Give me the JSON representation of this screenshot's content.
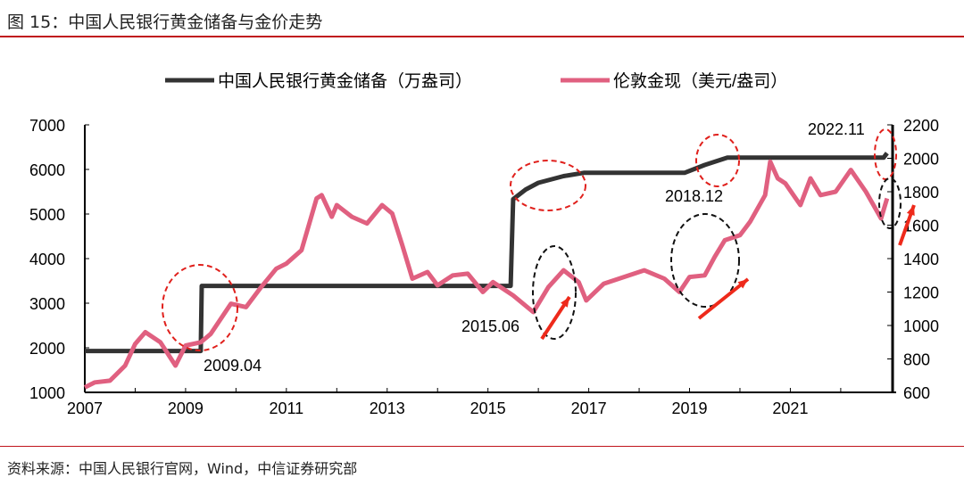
{
  "header": {
    "title": "图 15：中国人民银行黄金储备与金价走势"
  },
  "footer": {
    "source": "资料来源：中国人民银行官网，Wind，中信证券研究部"
  },
  "chart_data": {
    "type": "line",
    "title": "图 15：中国人民银行黄金储备与金价走势",
    "x_ticks": [
      "2007",
      "2009",
      "2011",
      "2013",
      "2015",
      "2017",
      "2019",
      "2021"
    ],
    "xlim": [
      2007,
      2023.1
    ],
    "y_left": {
      "ylim": [
        1000,
        7000
      ],
      "ticks": [
        "1000",
        "2000",
        "3000",
        "4000",
        "5000",
        "6000",
        "7000"
      ]
    },
    "y_right": {
      "ylim": [
        600,
        2200
      ],
      "ticks": [
        "600",
        "800",
        "1000",
        "1200",
        "1400",
        "1600",
        "1800",
        "2000",
        "2200"
      ]
    },
    "legend_position": "top",
    "series": [
      {
        "name": "中国人民银行黄金储备（万盎司）",
        "axis": "left",
        "color": "#333333",
        "x": [
          2007.0,
          2009.3,
          2009.32,
          2015.45,
          2015.5,
          2015.75,
          2016.0,
          2016.5,
          2016.9,
          2018.9,
          2019.3,
          2019.75,
          2022.85,
          2022.92
        ],
        "y": [
          1929,
          1929,
          3389,
          3389,
          5332,
          5550,
          5700,
          5850,
          5924,
          5924,
          6100,
          6264,
          6264,
          6367
        ]
      },
      {
        "name": "伦敦金现（美元/盎司）",
        "axis": "right",
        "color": "#e06080",
        "x": [
          2007.0,
          2007.2,
          2007.5,
          2007.8,
          2008.0,
          2008.2,
          2008.5,
          2008.8,
          2009.0,
          2009.3,
          2009.5,
          2009.9,
          2010.2,
          2010.5,
          2010.8,
          2011.0,
          2011.3,
          2011.6,
          2011.7,
          2011.9,
          2012.0,
          2012.3,
          2012.6,
          2012.9,
          2013.1,
          2013.3,
          2013.5,
          2013.8,
          2014.0,
          2014.3,
          2014.6,
          2014.9,
          2015.1,
          2015.5,
          2015.9,
          2016.2,
          2016.5,
          2016.8,
          2016.95,
          2017.3,
          2017.7,
          2018.1,
          2018.5,
          2018.8,
          2019.0,
          2019.3,
          2019.5,
          2019.7,
          2020.0,
          2020.2,
          2020.5,
          2020.6,
          2020.75,
          2020.9,
          2021.2,
          2021.4,
          2021.6,
          2021.9,
          2022.2,
          2022.5,
          2022.8,
          2022.92
        ],
        "y": [
          630,
          660,
          670,
          760,
          890,
          960,
          900,
          760,
          880,
          900,
          950,
          1130,
          1110,
          1230,
          1340,
          1370,
          1450,
          1760,
          1780,
          1650,
          1720,
          1650,
          1610,
          1720,
          1670,
          1480,
          1280,
          1320,
          1240,
          1300,
          1310,
          1200,
          1260,
          1180,
          1080,
          1230,
          1330,
          1260,
          1150,
          1250,
          1290,
          1330,
          1280,
          1200,
          1290,
          1300,
          1410,
          1510,
          1540,
          1620,
          1780,
          1980,
          1880,
          1850,
          1720,
          1880,
          1780,
          1800,
          1930,
          1800,
          1640,
          1760
        ]
      }
    ],
    "annotations": [
      "2009.04",
      "2015.06",
      "2018.12",
      "2022.11"
    ]
  }
}
